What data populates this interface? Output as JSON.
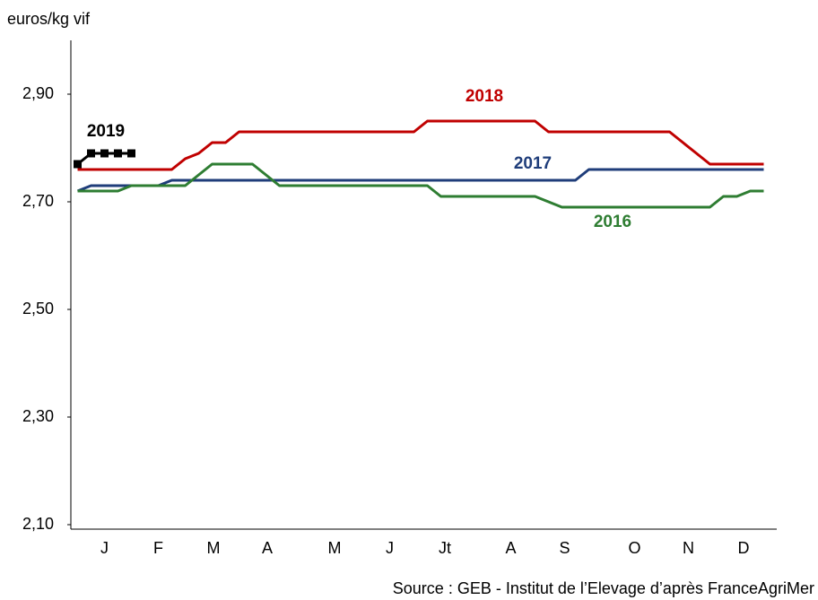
{
  "chart_data": {
    "type": "line",
    "y_axis_label": "euros/kg vif",
    "source": "Source : GEB - Institut de l’Elevage  d’après FranceAgriMer",
    "x": [
      1,
      2,
      3,
      4,
      5,
      6,
      7,
      8,
      9,
      10,
      11,
      12,
      13,
      14,
      15,
      16,
      17,
      18,
      19,
      20,
      21,
      22,
      23,
      24,
      25,
      26,
      27,
      28,
      29,
      30,
      31,
      32,
      33,
      34,
      35,
      36,
      37,
      38,
      39,
      40,
      41,
      42,
      43,
      44,
      45,
      46,
      47,
      48,
      49,
      50,
      51,
      52
    ],
    "xlim": [
      0.5,
      53
    ],
    "xticks": [
      {
        "value": 3.0,
        "label": "J"
      },
      {
        "value": 7.0,
        "label": "F"
      },
      {
        "value": 11.1,
        "label": "M"
      },
      {
        "value": 15.1,
        "label": "A"
      },
      {
        "value": 20.1,
        "label": "M"
      },
      {
        "value": 24.2,
        "label": "J"
      },
      {
        "value": 28.3,
        "label": "Jt"
      },
      {
        "value": 33.2,
        "label": "A"
      },
      {
        "value": 37.2,
        "label": "S"
      },
      {
        "value": 42.4,
        "label": "O"
      },
      {
        "value": 46.4,
        "label": "N"
      },
      {
        "value": 50.5,
        "label": "D"
      }
    ],
    "ylim": [
      2.1,
      3.0
    ],
    "yticks": [
      {
        "value": 2.1,
        "label": "2,10"
      },
      {
        "value": 2.3,
        "label": "2,30"
      },
      {
        "value": 2.5,
        "label": "2,50"
      },
      {
        "value": 2.7,
        "label": "2,70"
      },
      {
        "value": 2.9,
        "label": "2,90"
      }
    ],
    "series": [
      {
        "name": "2018",
        "color": "#c00000",
        "values": [
          2.76,
          2.76,
          2.76,
          2.76,
          2.76,
          2.76,
          2.76,
          2.76,
          2.78,
          2.79,
          2.81,
          2.81,
          2.83,
          2.83,
          2.83,
          2.83,
          2.83,
          2.83,
          2.83,
          2.83,
          2.83,
          2.83,
          2.83,
          2.83,
          2.83,
          2.83,
          2.85,
          2.85,
          2.85,
          2.85,
          2.85,
          2.85,
          2.85,
          2.85,
          2.85,
          2.83,
          2.83,
          2.83,
          2.83,
          2.83,
          2.83,
          2.83,
          2.83,
          2.83,
          2.83,
          2.81,
          2.79,
          2.77,
          2.77,
          2.77,
          2.77,
          2.77
        ]
      },
      {
        "name": "2017",
        "color": "#1f3d7a",
        "values": [
          2.72,
          2.73,
          2.73,
          2.73,
          2.73,
          2.73,
          2.73,
          2.74,
          2.74,
          2.74,
          2.74,
          2.74,
          2.74,
          2.74,
          2.74,
          2.74,
          2.74,
          2.74,
          2.74,
          2.74,
          2.74,
          2.74,
          2.74,
          2.74,
          2.74,
          2.74,
          2.74,
          2.74,
          2.74,
          2.74,
          2.74,
          2.74,
          2.74,
          2.74,
          2.74,
          2.74,
          2.74,
          2.74,
          2.76,
          2.76,
          2.76,
          2.76,
          2.76,
          2.76,
          2.76,
          2.76,
          2.76,
          2.76,
          2.76,
          2.76,
          2.76,
          2.76
        ]
      },
      {
        "name": "2016",
        "color": "#2e7d32",
        "values": [
          2.72,
          2.72,
          2.72,
          2.72,
          2.73,
          2.73,
          2.73,
          2.73,
          2.73,
          2.75,
          2.77,
          2.77,
          2.77,
          2.77,
          2.75,
          2.73,
          2.73,
          2.73,
          2.73,
          2.73,
          2.73,
          2.73,
          2.73,
          2.73,
          2.73,
          2.73,
          2.73,
          2.71,
          2.71,
          2.71,
          2.71,
          2.71,
          2.71,
          2.71,
          2.71,
          2.7,
          2.69,
          2.69,
          2.69,
          2.69,
          2.69,
          2.69,
          2.69,
          2.69,
          2.69,
          2.69,
          2.69,
          2.69,
          2.71,
          2.71,
          2.72,
          2.72
        ]
      },
      {
        "name": "2019",
        "color": "#000000",
        "markers": true,
        "values": [
          2.77,
          2.79,
          2.79,
          2.79,
          2.79,
          null,
          null,
          null,
          null,
          null,
          null,
          null,
          null,
          null,
          null,
          null,
          null,
          null,
          null,
          null,
          null,
          null,
          null,
          null,
          null,
          null,
          null,
          null,
          null,
          null,
          null,
          null,
          null,
          null,
          null,
          null,
          null,
          null,
          null,
          null,
          null,
          null,
          null,
          null,
          null,
          null,
          null,
          null,
          null,
          null,
          null,
          null
        ]
      }
    ]
  }
}
